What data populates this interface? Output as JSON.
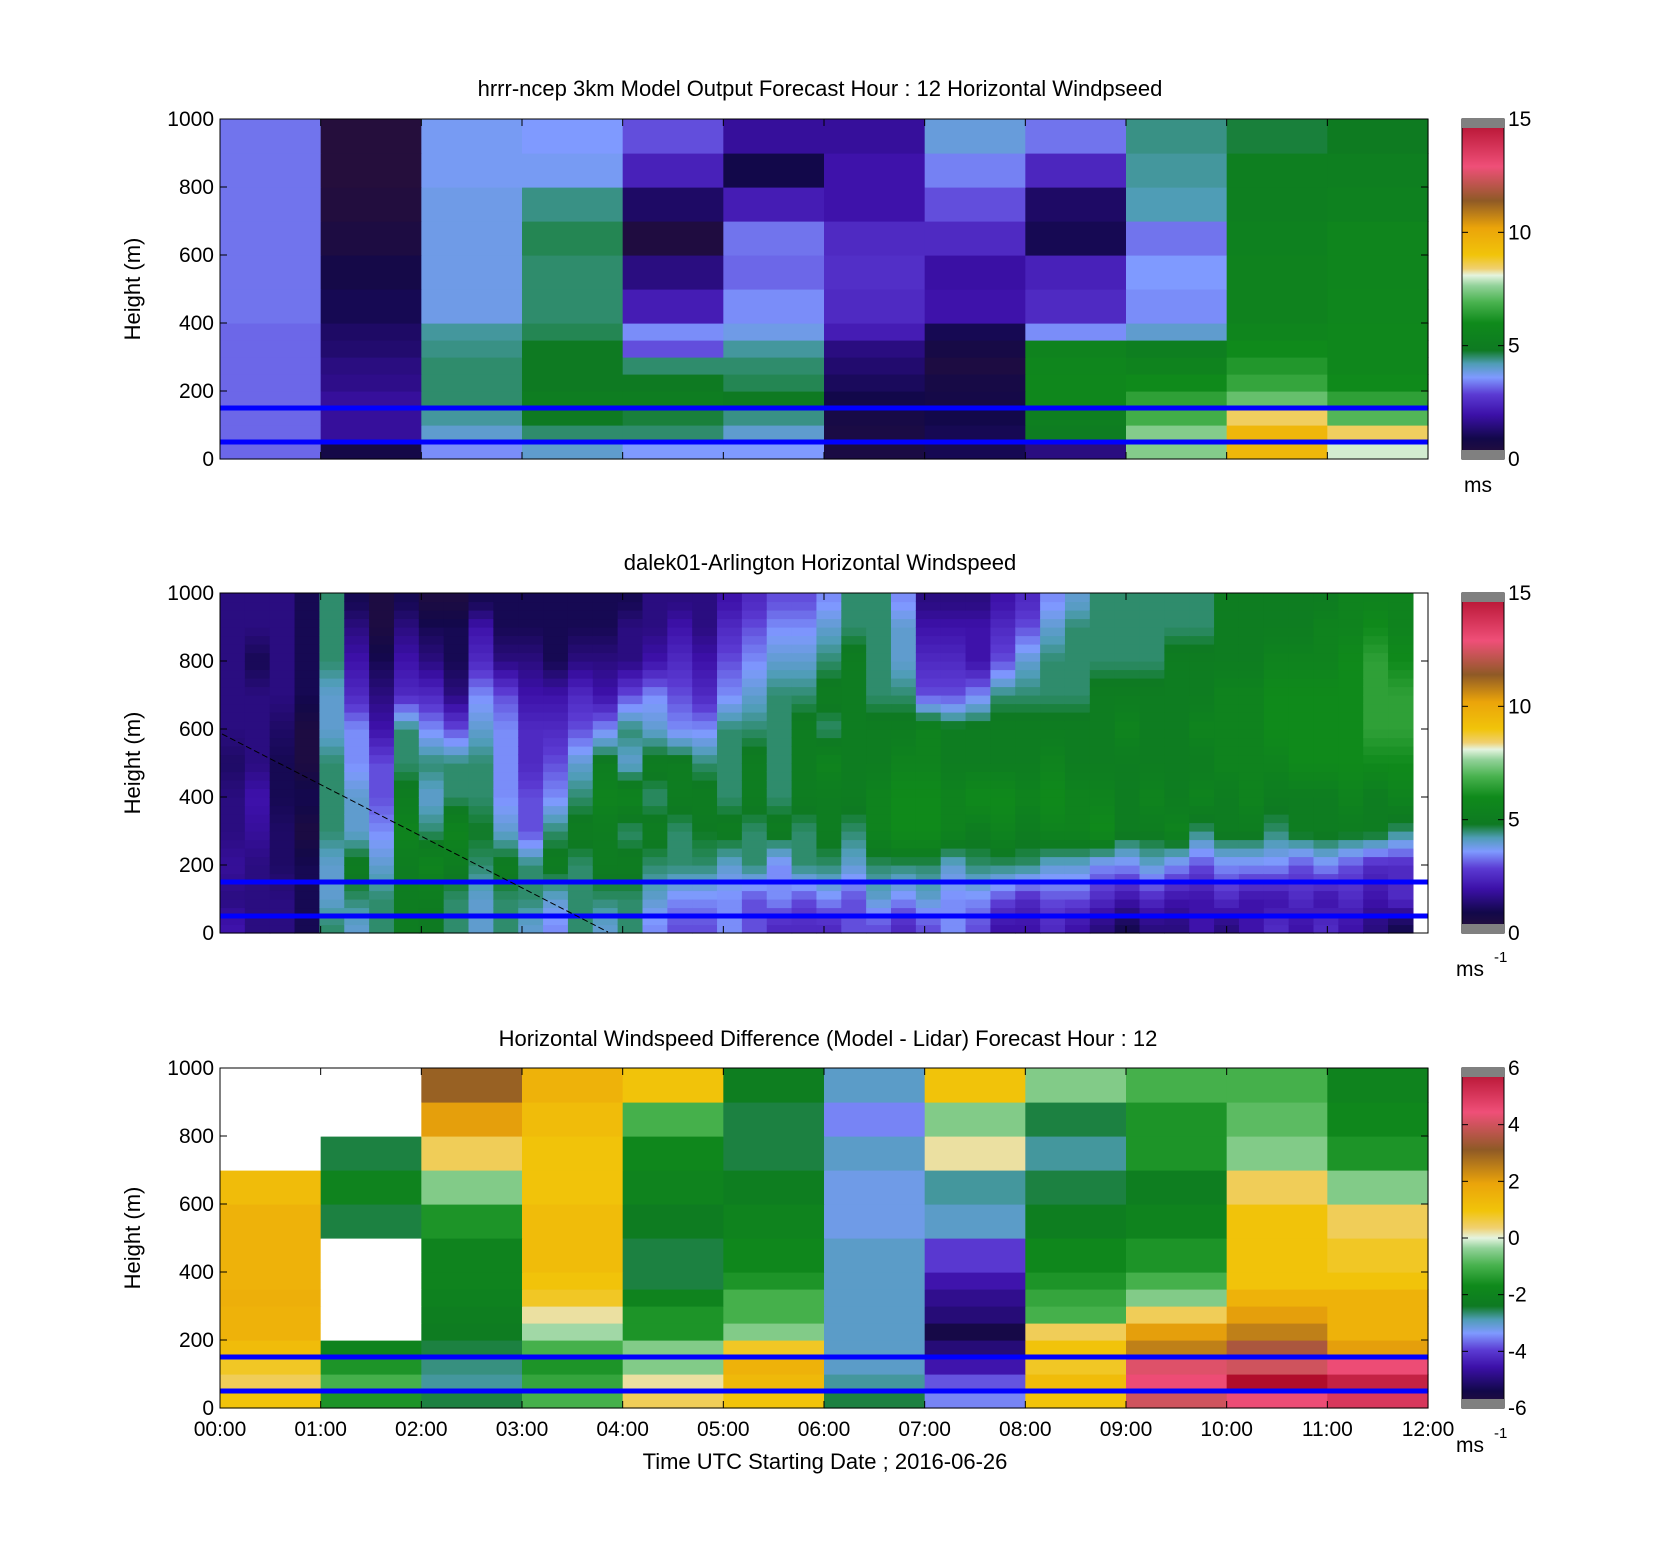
{
  "colors": {
    "line_overlay": "#0000ff",
    "missing": "#ffffff",
    "out_of_range": "#808080"
  },
  "x_ticks": [
    "00:00",
    "01:00",
    "02:00",
    "03:00",
    "04:00",
    "05:00",
    "06:00",
    "07:00",
    "08:00",
    "09:00",
    "10:00",
    "11:00",
    "12:00"
  ],
  "x_label": "Time UTC  Starting Date ; 2016-06-26",
  "y_label": "Height (m)",
  "y_ticks": [
    "0",
    "200",
    "400",
    "600",
    "800",
    "1000"
  ],
  "chart_data": [
    {
      "type": "heatmap",
      "title": "hrrr-ncep 3km Model Output   Forecast Hour : 12 Horizontal Windpseed",
      "ylabel": "Height (m)",
      "xlim": [
        "00:00",
        "12:00"
      ],
      "ylim": [
        0,
        1000
      ],
      "colorbar": {
        "ticks": [
          "0",
          "5",
          "10",
          "15"
        ],
        "range": [
          0,
          15
        ],
        "unit_label": "ms"
      },
      "time_bins": [
        "00:00",
        "01:00",
        "02:00",
        "03:00",
        "04:00",
        "05:00",
        "06:00",
        "07:00",
        "08:00",
        "09:00",
        "10:00",
        "11:00"
      ],
      "height_levels_m": [
        0,
        50,
        100,
        150,
        200,
        250,
        300,
        350,
        400,
        500,
        600,
        700,
        800,
        900,
        1000
      ],
      "values_ms": [
        [
          3.2,
          0.8,
          3.5,
          4.0,
          3.6,
          3.6,
          0.6,
          1.0,
          1.5,
          7.5,
          9.5,
          8.0
        ],
        [
          3.2,
          1.8,
          4.0,
          4.5,
          4.5,
          4.0,
          0.6,
          1.0,
          5.0,
          7.5,
          9.5,
          8.5
        ],
        [
          3.2,
          1.8,
          4.3,
          4.8,
          4.7,
          4.4,
          0.7,
          0.9,
          5.2,
          6.8,
          8.5,
          7.0
        ],
        [
          3.2,
          1.8,
          4.5,
          5.0,
          5.0,
          4.8,
          0.9,
          0.8,
          5.8,
          6.5,
          7.2,
          6.5
        ],
        [
          3.2,
          1.6,
          4.5,
          4.8,
          4.8,
          4.6,
          1.1,
          0.7,
          5.8,
          6.0,
          6.6,
          6.0
        ],
        [
          3.2,
          1.5,
          4.5,
          4.8,
          4.5,
          4.5,
          1.3,
          0.5,
          5.7,
          5.5,
          6.3,
          5.8
        ],
        [
          3.2,
          1.3,
          4.4,
          4.8,
          3.0,
          4.3,
          1.5,
          0.7,
          5.5,
          5.2,
          6.0,
          5.8
        ],
        [
          3.2,
          1.2,
          4.3,
          4.6,
          3.5,
          3.8,
          2.2,
          1.0,
          3.5,
          4.0,
          5.6,
          5.8
        ],
        [
          3.3,
          1.0,
          3.8,
          4.5,
          2.2,
          3.5,
          2.5,
          2.0,
          2.5,
          3.5,
          5.4,
          5.7
        ],
        [
          3.3,
          0.8,
          3.8,
          4.5,
          1.5,
          3.2,
          2.6,
          1.9,
          2.3,
          3.6,
          5.4,
          5.6
        ],
        [
          3.3,
          0.5,
          3.8,
          4.6,
          0.4,
          3.3,
          2.5,
          2.5,
          1.0,
          3.3,
          5.3,
          5.6
        ],
        [
          3.3,
          0.3,
          3.8,
          4.4,
          1.2,
          2.2,
          2.0,
          3.0,
          1.2,
          4.2,
          5.2,
          5.3
        ],
        [
          3.3,
          0.2,
          3.7,
          3.7,
          2.3,
          0.9,
          2.0,
          3.4,
          2.4,
          4.3,
          5.2,
          5.2
        ],
        [
          3.3,
          0.2,
          3.7,
          3.6,
          3.0,
          1.8,
          1.8,
          3.9,
          3.3,
          4.4,
          4.7,
          4.9
        ]
      ],
      "overlay_lines_m": [
        50,
        150
      ]
    },
    {
      "type": "heatmap",
      "title": "dalek01-Arlington  Horizontal Windspeed",
      "ylabel": "Height (m)",
      "xlim": [
        "00:00",
        "12:00"
      ],
      "ylim": [
        0,
        1000
      ],
      "colorbar": {
        "ticks": [
          "0",
          "5",
          "10",
          "15"
        ],
        "range": [
          0,
          15
        ],
        "unit_label": "ms",
        "unit_exponent": "-1"
      },
      "sample_times": [
        "00:00",
        "00:15",
        "00:30",
        "00:45",
        "01:00",
        "01:15",
        "01:30",
        "01:45",
        "02:00",
        "02:15",
        "02:30",
        "02:45",
        "03:00",
        "03:15",
        "03:30",
        "03:45",
        "04:00",
        "04:15",
        "04:30",
        "04:45",
        "05:00",
        "05:15",
        "05:30",
        "05:45",
        "06:00",
        "06:15",
        "06:30",
        "06:45",
        "07:00",
        "07:15",
        "07:30",
        "07:45",
        "08:00",
        "08:15",
        "08:30",
        "08:45",
        "09:00",
        "09:15",
        "09:30",
        "09:45",
        "10:00",
        "10:15",
        "10:30",
        "10:45",
        "11:00",
        "11:15",
        "11:30",
        "11:45"
      ],
      "profile_heights_m": [
        25,
        100,
        200,
        300,
        400,
        500,
        600,
        700,
        800,
        900,
        975
      ],
      "values_ms_by_height": [
        [
          2.0,
          1.5,
          1.5,
          1.0,
          4.5,
          4.0,
          4.5,
          5.0,
          4.8,
          4.5,
          4.0,
          4.5,
          4.0,
          3.5,
          4.5,
          4.0,
          4.5,
          3.5,
          3.0,
          3.0,
          3.5,
          3.0,
          2.5,
          2.5,
          2.5,
          3.0,
          3.0,
          2.5,
          3.0,
          3.5,
          3.0,
          2.0,
          2.0,
          2.5,
          2.0,
          1.5,
          1.0,
          1.5,
          1.5,
          2.0,
          1.5,
          2.0,
          2.5,
          2.0,
          2.5,
          2.0,
          1.5,
          1.0
        ],
        [
          1.5,
          1.5,
          1.5,
          1.0,
          4.0,
          4.5,
          4.5,
          5.0,
          5.0,
          4.5,
          4.0,
          4.5,
          4.5,
          4.0,
          4.5,
          4.5,
          4.5,
          4.0,
          3.5,
          3.5,
          3.5,
          3.0,
          3.5,
          3.0,
          3.5,
          3.0,
          4.0,
          3.5,
          4.0,
          3.5,
          3.5,
          3.0,
          2.5,
          3.0,
          3.0,
          2.5,
          2.0,
          2.5,
          2.0,
          2.0,
          2.5,
          2.0,
          2.0,
          2.5,
          2.0,
          2.5,
          2.0,
          2.5
        ],
        [
          1.8,
          1.5,
          1.2,
          1.0,
          4.0,
          5.0,
          4.0,
          5.0,
          5.5,
          5.0,
          4.5,
          5.0,
          4.5,
          5.0,
          4.5,
          5.0,
          5.0,
          4.5,
          4.5,
          4.5,
          4.0,
          4.5,
          3.5,
          4.5,
          4.5,
          4.0,
          4.5,
          4.5,
          4.5,
          4.0,
          4.5,
          4.5,
          4.5,
          4.0,
          4.0,
          3.5,
          3.5,
          4.0,
          3.5,
          3.0,
          3.5,
          3.5,
          3.5,
          3.0,
          3.5,
          3.0,
          2.5,
          2.5
        ],
        [
          1.5,
          1.8,
          1.2,
          0.5,
          4.5,
          4.0,
          3.5,
          5.5,
          4.5,
          5.5,
          4.8,
          4.0,
          3.0,
          4.5,
          5.0,
          5.0,
          4.5,
          5.0,
          4.5,
          4.8,
          5.0,
          4.5,
          5.0,
          4.5,
          5.0,
          4.5,
          5.5,
          6.0,
          6.0,
          5.5,
          5.0,
          5.5,
          5.0,
          5.5,
          5.5,
          6.0,
          5.0,
          5.0,
          5.5,
          4.5,
          5.0,
          5.0,
          4.5,
          5.0,
          5.0,
          5.0,
          5.0,
          4.5
        ],
        [
          1.5,
          2.0,
          1.0,
          1.0,
          4.5,
          4.0,
          3.0,
          5.0,
          4.0,
          4.5,
          4.5,
          3.5,
          3.0,
          3.5,
          4.5,
          5.5,
          5.5,
          4.5,
          5.0,
          5.0,
          4.5,
          5.0,
          4.5,
          5.0,
          5.0,
          5.0,
          5.5,
          6.0,
          6.0,
          5.5,
          6.0,
          6.0,
          5.5,
          6.0,
          5.5,
          5.5,
          5.0,
          5.5,
          5.0,
          5.5,
          5.0,
          5.5,
          5.0,
          5.0,
          5.0,
          5.5,
          5.0,
          5.5
        ],
        [
          1.2,
          1.5,
          1.0,
          0.5,
          4.5,
          3.5,
          3.0,
          4.5,
          4.5,
          4.5,
          4.5,
          3.5,
          2.5,
          3.0,
          4.0,
          5.0,
          4.0,
          5.0,
          5.0,
          4.5,
          4.5,
          5.0,
          4.5,
          5.0,
          5.5,
          5.0,
          5.0,
          5.5,
          5.5,
          5.0,
          5.0,
          5.0,
          5.0,
          5.5,
          5.0,
          5.0,
          5.0,
          5.0,
          5.0,
          5.0,
          5.5,
          5.5,
          5.5,
          6.0,
          6.0,
          6.0,
          6.0,
          6.0
        ],
        [
          1.5,
          1.5,
          1.2,
          0.5,
          4.0,
          3.5,
          2.0,
          4.5,
          3.5,
          3.0,
          4.0,
          3.5,
          2.5,
          2.5,
          3.0,
          3.5,
          4.5,
          4.0,
          3.5,
          3.5,
          4.5,
          4.5,
          4.5,
          5.0,
          4.5,
          5.0,
          5.0,
          5.0,
          5.5,
          5.0,
          5.0,
          5.0,
          5.0,
          5.0,
          5.0,
          5.0,
          5.5,
          5.0,
          5.0,
          5.5,
          5.5,
          5.5,
          6.0,
          6.0,
          6.0,
          6.0,
          6.5,
          6.5
        ],
        [
          1.5,
          1.5,
          1.5,
          1.0,
          4.0,
          2.5,
          1.5,
          2.5,
          2.5,
          1.5,
          3.5,
          3.0,
          2.0,
          2.0,
          2.5,
          2.0,
          3.0,
          3.5,
          3.0,
          2.5,
          3.5,
          4.0,
          4.5,
          4.5,
          5.0,
          5.0,
          4.5,
          4.5,
          3.0,
          3.0,
          3.5,
          4.5,
          4.5,
          4.5,
          4.5,
          5.0,
          5.0,
          5.0,
          5.0,
          5.0,
          5.5,
          5.5,
          6.0,
          6.0,
          6.0,
          6.0,
          6.5,
          6.5
        ],
        [
          1.5,
          1.0,
          1.5,
          1.0,
          4.5,
          2.0,
          1.0,
          2.0,
          1.5,
          1.0,
          2.5,
          1.5,
          1.5,
          1.0,
          1.5,
          1.5,
          1.5,
          2.0,
          2.5,
          2.0,
          3.0,
          3.5,
          4.0,
          4.0,
          4.5,
          5.0,
          4.5,
          4.0,
          2.5,
          2.5,
          2.0,
          3.0,
          4.0,
          4.5,
          4.5,
          4.5,
          4.5,
          4.5,
          5.0,
          5.0,
          5.0,
          5.0,
          5.5,
          5.5,
          5.5,
          6.0,
          6.5,
          6.0
        ],
        [
          1.5,
          1.5,
          1.5,
          1.0,
          4.5,
          1.5,
          0.5,
          1.5,
          1.0,
          1.0,
          2.0,
          1.0,
          1.0,
          1.0,
          1.0,
          1.0,
          1.5,
          1.5,
          2.0,
          1.5,
          2.5,
          3.0,
          3.5,
          3.5,
          4.0,
          4.5,
          4.5,
          4.0,
          2.0,
          2.0,
          2.0,
          2.5,
          3.0,
          4.0,
          4.5,
          4.5,
          4.5,
          4.5,
          4.5,
          4.5,
          5.0,
          5.0,
          5.0,
          5.0,
          5.5,
          5.5,
          6.0,
          5.5
        ],
        [
          1.5,
          1.5,
          1.5,
          1.0,
          4.5,
          1.0,
          0.5,
          1.0,
          0.5,
          0.5,
          1.0,
          1.0,
          1.0,
          1.0,
          1.0,
          1.0,
          1.0,
          1.5,
          1.5,
          1.5,
          2.0,
          2.5,
          3.0,
          3.0,
          3.5,
          4.5,
          4.5,
          3.5,
          1.5,
          1.5,
          1.5,
          2.0,
          2.5,
          3.5,
          4.0,
          4.5,
          4.5,
          4.5,
          4.5,
          4.5,
          5.0,
          5.0,
          5.0,
          5.0,
          5.0,
          5.5,
          5.5,
          5.5
        ]
      ],
      "overlay_lines_m": [
        50,
        150
      ]
    },
    {
      "type": "heatmap",
      "title": "Horizontal Windspeed Difference (Model - Lidar) Forecast Hour : 12",
      "ylabel": "Height (m)",
      "xlabel": "Time UTC  Starting Date ; 2016-06-26",
      "xlim": [
        "00:00",
        "12:00"
      ],
      "ylim": [
        0,
        1000
      ],
      "colorbar": {
        "ticks": [
          "-6",
          "-4",
          "-2",
          "0",
          "2",
          "4",
          "6"
        ],
        "range": [
          -6,
          6
        ],
        "unit_label": "ms",
        "unit_exponent": "-1"
      },
      "time_bins": [
        "00:00",
        "01:00",
        "02:00",
        "03:00",
        "04:00",
        "05:00",
        "06:00",
        "07:00",
        "08:00",
        "09:00",
        "10:00",
        "11:00"
      ],
      "height_levels_m": [
        0,
        50,
        100,
        150,
        200,
        250,
        300,
        350,
        400,
        500,
        600,
        700,
        800,
        900,
        1000
      ],
      "values_ms": [
        [
          1.0,
          -1.5,
          -2.5,
          -1.0,
          0.5,
          1.0,
          -2.5,
          -3.5,
          1.0,
          4.0,
          4.5,
          5.0
        ],
        [
          0.5,
          -1.0,
          -2.8,
          -1.2,
          0.2,
          1.3,
          -2.8,
          -3.8,
          1.2,
          4.5,
          6.5,
          5.5
        ],
        [
          0.8,
          -1.5,
          -2.7,
          -1.5,
          -0.5,
          1.5,
          -3.0,
          -4.5,
          0.8,
          4.2,
          4.0,
          4.5
        ],
        [
          1.2,
          -2.0,
          -2.5,
          -1.0,
          -0.5,
          0.8,
          -3.0,
          -5.0,
          1.0,
          2.5,
          3.5,
          2.0
        ],
        [
          1.5,
          null,
          -2.3,
          -0.3,
          -1.5,
          -0.5,
          -3.0,
          -5.5,
          0.5,
          2.0,
          2.5,
          1.5
        ],
        [
          1.5,
          null,
          -2.2,
          0.2,
          -1.5,
          -1.0,
          -3.0,
          -5.0,
          -1.0,
          0.5,
          2.0,
          1.5
        ],
        [
          1.6,
          null,
          -2.1,
          0.8,
          -2.0,
          -1.0,
          -3.0,
          -4.8,
          -1.2,
          -0.5,
          1.5,
          1.5
        ],
        [
          1.5,
          null,
          -2.0,
          1.0,
          -2.5,
          -1.5,
          -3.0,
          -4.5,
          -1.5,
          -1.0,
          1.0,
          1.0
        ],
        [
          1.5,
          null,
          -2.0,
          1.2,
          -2.5,
          -1.8,
          -3.0,
          -4.0,
          -1.8,
          -1.5,
          1.0,
          0.8
        ],
        [
          1.5,
          -2.5,
          -1.5,
          1.2,
          -2.3,
          -2.0,
          -3.2,
          -3.0,
          -2.2,
          -2.0,
          1.0,
          0.5
        ],
        [
          1.2,
          -2.0,
          -0.5,
          1.0,
          -2.0,
          -2.2,
          -3.2,
          -2.8,
          -2.5,
          -2.2,
          0.5,
          -0.5
        ],
        [
          null,
          -2.5,
          0.5,
          1.0,
          -1.8,
          -2.5,
          -3.0,
          0.2,
          -2.8,
          -1.5,
          -0.5,
          -1.5
        ],
        [
          null,
          null,
          2.0,
          1.2,
          -1.0,
          -2.5,
          -3.5,
          -0.5,
          -2.5,
          -1.5,
          -0.8,
          -1.8
        ],
        [
          null,
          null,
          3.0,
          1.5,
          1.0,
          -2.2,
          -3.0,
          1.0,
          -0.5,
          -1.0,
          -1.0,
          -2.0
        ]
      ],
      "overlay_lines_m": [
        50,
        150
      ]
    }
  ]
}
